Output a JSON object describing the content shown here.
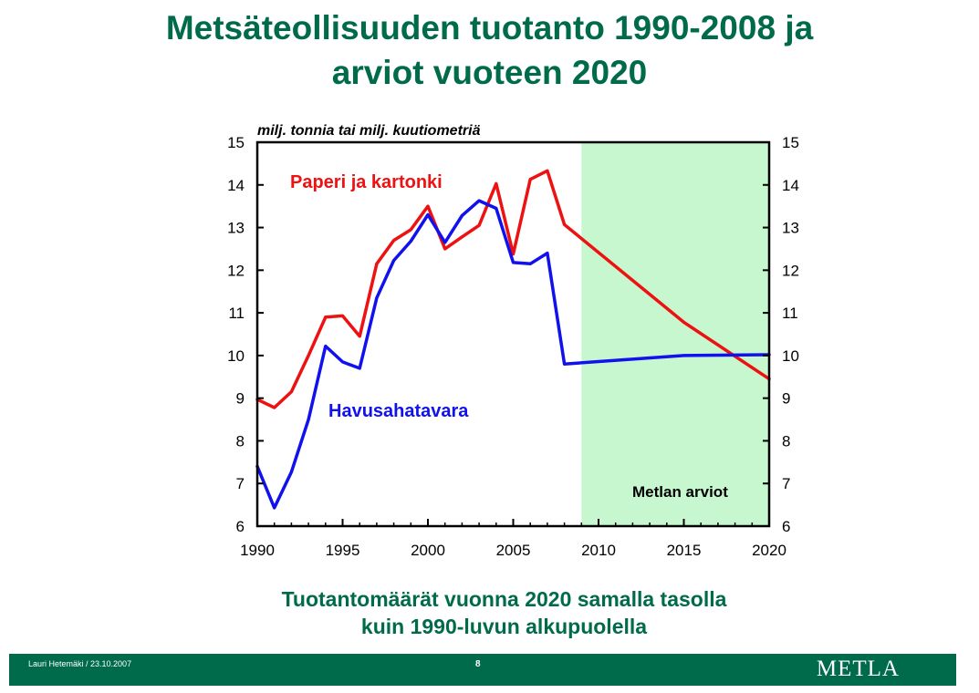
{
  "slide": {
    "title_line1": "Metsäteollisuuden tuotanto 1990-2008 ja",
    "title_line2": "arviot vuoteen 2020",
    "subtitle_line1": "Tuotantomäärät vuonna 2020 samalla tasolla",
    "subtitle_line2": "kuin 1990-luvun alkupuolella"
  },
  "footer": {
    "author_date": "Lauri Hetemäki / 23.10.2007",
    "page_number": "8",
    "logo_text": "METLA",
    "background": "#006b4a"
  },
  "colors": {
    "title": "#006b4a",
    "forecast_shade": "#c6f7cf",
    "paper_series": "#ee1111",
    "sawn_series": "#1111ee"
  },
  "chart_data": {
    "type": "line",
    "ylabel": "milj. tonnia tai milj. kuutiometriä",
    "xlim": [
      1990,
      2020
    ],
    "ylim": [
      6,
      15
    ],
    "x_ticks": [
      "1990",
      "1995",
      "2000",
      "2005",
      "2010",
      "2015",
      "2020"
    ],
    "y_ticks": [
      "6",
      "7",
      "8",
      "9",
      "10",
      "11",
      "12",
      "13",
      "14",
      "15"
    ],
    "grid": false,
    "forecast_region": {
      "x_start": 2009,
      "x_end": 2020,
      "label": "Metlan arviot"
    },
    "series": [
      {
        "name": "Paperi ja kartonki",
        "color": "#ee1111",
        "x": [
          1990,
          1991,
          1992,
          1993,
          1994,
          1995,
          1996,
          1997,
          1998,
          1999,
          2000,
          2001,
          2002,
          2003,
          2004,
          2005,
          2006,
          2007,
          2008,
          2015,
          2020
        ],
        "values": [
          8.97,
          8.78,
          9.15,
          10.0,
          10.9,
          10.93,
          10.45,
          12.15,
          12.7,
          12.95,
          13.5,
          12.5,
          12.78,
          13.05,
          14.03,
          12.38,
          14.13,
          14.33,
          13.07,
          10.78,
          9.45
        ]
      },
      {
        "name": "Havusahatavara",
        "color": "#1111ee",
        "x": [
          1990,
          1991,
          1992,
          1993,
          1994,
          1995,
          1996,
          1997,
          1998,
          1999,
          2000,
          2001,
          2002,
          2003,
          2004,
          2005,
          2006,
          2007,
          2008,
          2015,
          2020
        ],
        "values": [
          7.4,
          6.43,
          7.27,
          8.5,
          10.22,
          9.85,
          9.7,
          11.35,
          12.23,
          12.68,
          13.3,
          12.65,
          13.28,
          13.63,
          13.45,
          12.18,
          12.15,
          12.4,
          9.8,
          10.0,
          10.02
        ]
      }
    ]
  }
}
